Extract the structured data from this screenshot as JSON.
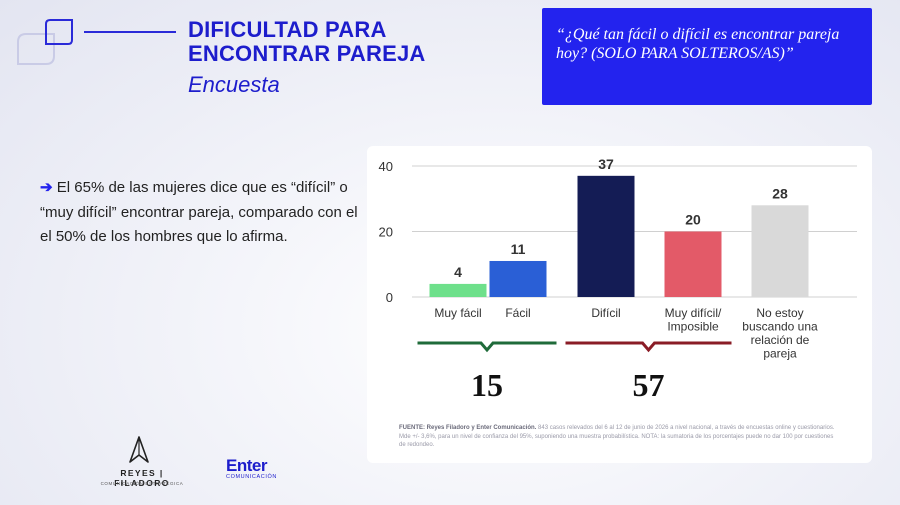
{
  "header": {
    "title_line1": "DIFICULTAD PARA",
    "title_line2": "ENCONTRAR PAREJA",
    "subtitle": "Encuesta"
  },
  "question": "“¿Qué tan fácil o difícil es encontrar pareja hoy? (SOLO PARA SOLTEROS/AS)”",
  "insight": {
    "arrow": "➔",
    "text": "El 65% de las mujeres dice que es “difícil” o “muy difícil” encontrar pareja, comparado con el el 50% de los hombres que lo afirma."
  },
  "chart_data": {
    "type": "bar",
    "categories": [
      "Muy fácil",
      "Fácil",
      "Difícil",
      "Muy difícil/ Imposible",
      "No estoy buscando una relación de pareja"
    ],
    "category_lines": [
      [
        "Muy fácil"
      ],
      [
        "Fácil"
      ],
      [
        "Difícil"
      ],
      [
        "Muy difícil/",
        "Imposible"
      ],
      [
        "No estoy",
        "buscando una",
        "relación de",
        "pareja"
      ]
    ],
    "values": [
      4,
      11,
      37,
      20,
      28
    ],
    "colors": [
      "#6ee08b",
      "#2a5fd6",
      "#141c55",
      "#e35a68",
      "#d9d9d9"
    ],
    "ylim": [
      0,
      40
    ],
    "yticks": [
      0,
      20,
      40
    ],
    "grid": true,
    "groups": [
      {
        "label": "15",
        "categories": [
          0,
          1
        ],
        "color": "#1f6b3a"
      },
      {
        "label": "57",
        "categories": [
          2,
          3
        ],
        "color": "#8a1c26"
      }
    ]
  },
  "footnote": {
    "source_label": "FUENTE: Reyes Filadoro y Enter Comunicación.",
    "text": " 843 casos relevados del 6 al 12 de junio de 2026 a nivel nacional, a través de encuestas online y cuestionarios. Mde +/- 3,6%, para un nivel de confianza del 95%, suponiendo una muestra probabilística. NOTA: la sumatoria de los porcentajes puede no dar 100 por cuestiones de redondeo."
  },
  "logos": {
    "reyes_name": "REYES | FILADORO",
    "reyes_sub": "COMUNICACIÓN ESTRATÉGICA",
    "enter_name": "Enter",
    "enter_sub": "COMUNICACIÓN"
  }
}
